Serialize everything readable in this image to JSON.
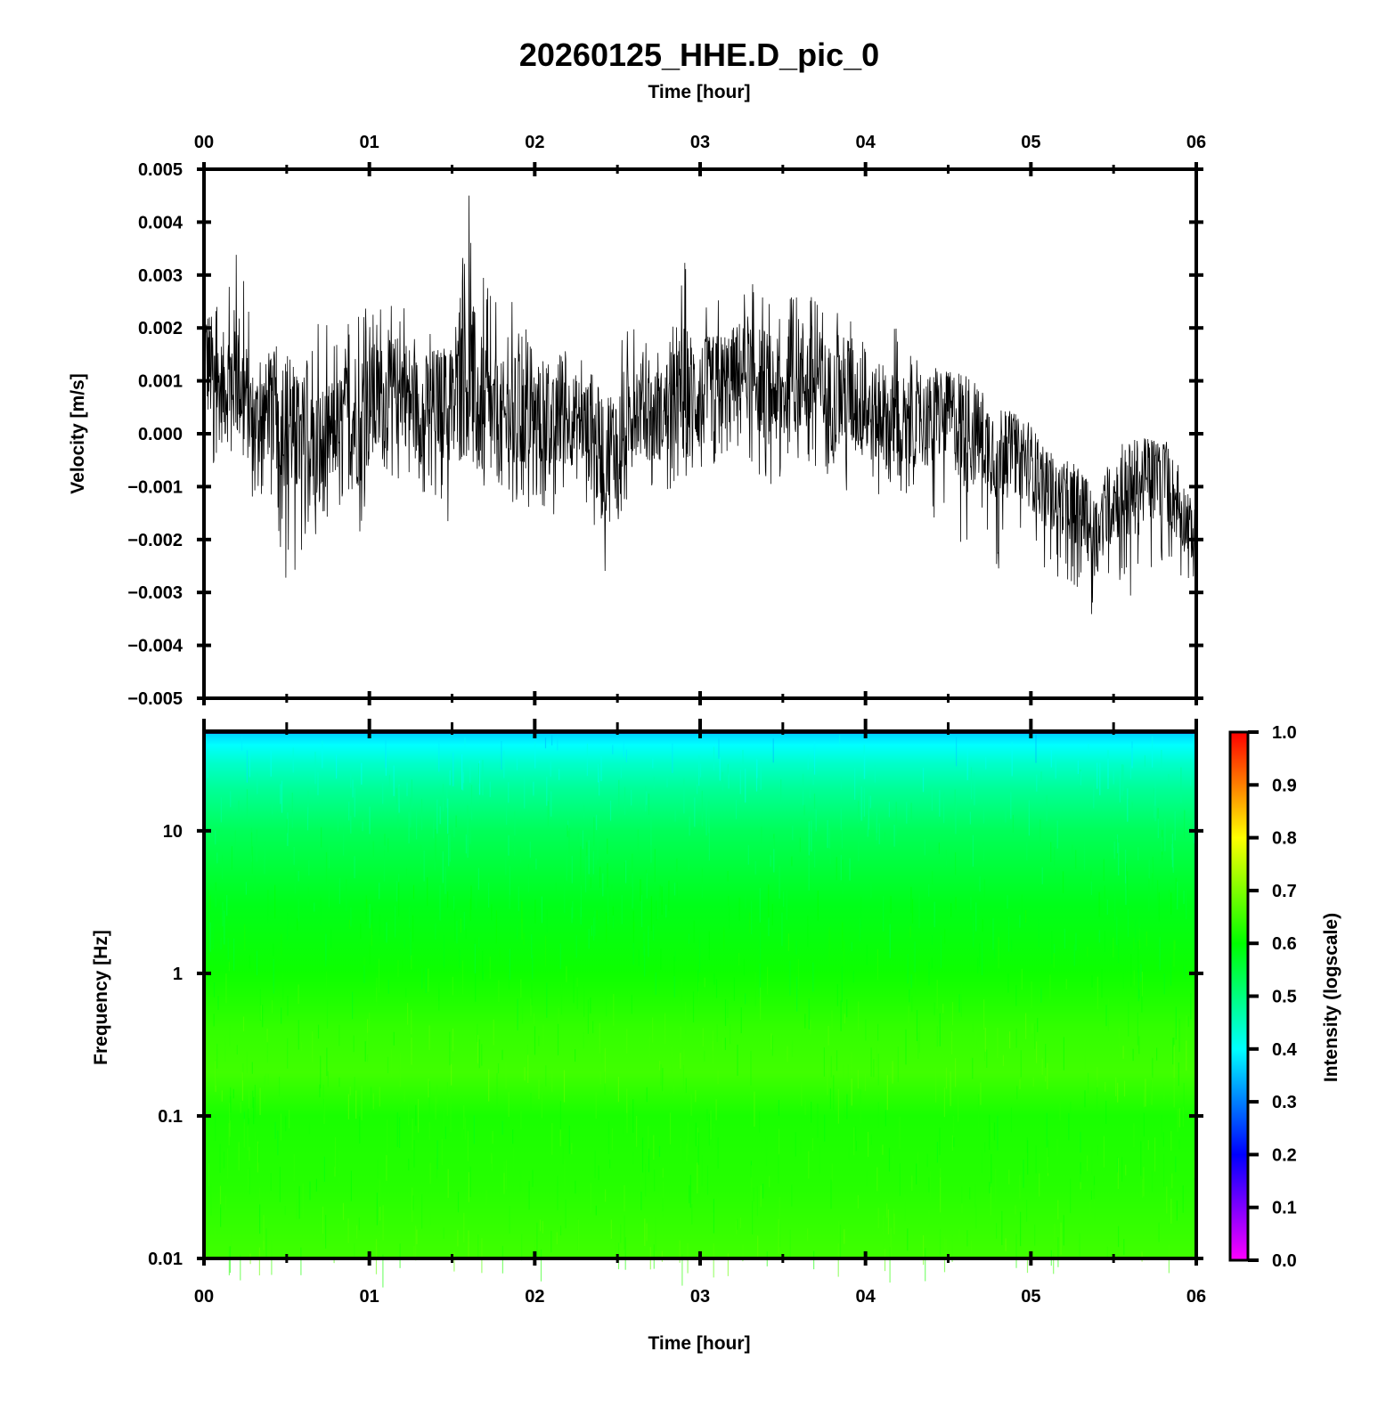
{
  "title": "20260125_HHE.D_pic_0",
  "top_xlabel": "Time [hour]",
  "bottom_xlabel": "Time [hour]",
  "waveform_ylabel": "Velocity [m/s]",
  "spectrogram_ylabel": "Frequency [Hz]",
  "colorbar_label": "Intensity (logscale)",
  "chart_data": [
    {
      "type": "line",
      "name": "waveform",
      "xlabel": "Time [hour]",
      "ylabel": "Velocity [m/s]",
      "xlim": [
        0,
        6
      ],
      "ylim": [
        -0.005,
        0.005
      ],
      "x_ticks": [
        "00",
        "01",
        "02",
        "03",
        "04",
        "05",
        "06"
      ],
      "y_ticks": [
        "0.005",
        "0.004",
        "0.003",
        "0.002",
        "0.001",
        "0.000",
        "−0.001",
        "−0.002",
        "−0.003",
        "−0.004",
        "−0.005"
      ],
      "grid": false,
      "color": "#000000",
      "x": [
        0.0,
        0.1,
        0.2,
        0.3,
        0.4,
        0.5,
        0.6,
        0.7,
        0.8,
        0.9,
        1.0,
        1.1,
        1.2,
        1.3,
        1.4,
        1.5,
        1.6,
        1.7,
        1.8,
        1.9,
        2.0,
        2.1,
        2.2,
        2.3,
        2.4,
        2.5,
        2.6,
        2.7,
        2.8,
        2.9,
        3.0,
        3.1,
        3.2,
        3.3,
        3.4,
        3.5,
        3.6,
        3.7,
        3.8,
        3.9,
        4.0,
        4.1,
        4.2,
        4.3,
        4.4,
        4.5,
        4.6,
        4.7,
        4.8,
        4.9,
        5.0,
        5.1,
        5.2,
        5.3,
        5.4,
        5.5,
        5.6,
        5.7,
        5.8,
        5.9,
        6.0
      ],
      "y": [
        0.0015,
        0.0008,
        0.0012,
        0.0002,
        0.0005,
        0.0003,
        -0.0003,
        -0.0004,
        0.0001,
        0.0003,
        0.0005,
        0.0006,
        0.0009,
        0.0004,
        0.0007,
        0.0004,
        0.0012,
        0.0003,
        0.0002,
        0.0003,
        0.0004,
        0.0001,
        0.0003,
        0.0002,
        -0.0004,
        -0.0001,
        0.0006,
        0.0003,
        0.0004,
        0.0008,
        0.0007,
        0.0009,
        0.0011,
        0.0013,
        0.0009,
        0.0007,
        0.0011,
        0.001,
        0.0006,
        0.0008,
        0.0004,
        0.0003,
        0.0001,
        0.0002,
        0.0002,
        0.0004,
        0.0001,
        -0.0001,
        -0.0003,
        -0.0004,
        -0.0006,
        -0.0011,
        -0.0012,
        -0.0014,
        -0.002,
        -0.0012,
        -0.0011,
        -0.0009,
        -0.0008,
        -0.0014,
        -0.002
      ],
      "envelope_max": [
        0.0031,
        0.0024,
        0.004,
        0.0016,
        0.0018,
        0.0017,
        0.0012,
        0.0024,
        0.0017,
        0.0023,
        0.0026,
        0.0025,
        0.0026,
        0.002,
        0.0019,
        0.0016,
        0.0047,
        0.003,
        0.0025,
        0.0025,
        0.0015,
        0.0015,
        0.0017,
        0.0014,
        0.0012,
        0.0018,
        0.0022,
        0.0018,
        0.0015,
        0.0033,
        0.0026,
        0.0026,
        0.0026,
        0.0029,
        0.0025,
        0.0023,
        0.0029,
        0.0027,
        0.0023,
        0.0024,
        0.0018,
        0.0015,
        0.0024,
        0.0014,
        0.0013,
        0.0012,
        0.0011,
        0.0009,
        0.0008,
        0.0004,
        0.0002,
        -0.0003,
        -0.0005,
        -0.0006,
        -0.0012,
        -0.0001,
        0.0,
        -0.0001,
        0.0,
        -0.0006,
        -0.0014
      ],
      "envelope_min": [
        -0.0006,
        -0.0008,
        -0.0003,
        -0.0015,
        -0.0012,
        -0.0029,
        -0.0023,
        -0.0019,
        -0.0012,
        -0.0023,
        -0.0014,
        -0.0011,
        -0.0008,
        -0.0013,
        -0.0012,
        -0.0021,
        -0.0005,
        -0.0011,
        -0.0012,
        -0.0016,
        -0.0013,
        -0.0016,
        -0.0012,
        -0.0014,
        -0.0029,
        -0.0017,
        -0.0009,
        -0.0013,
        -0.0011,
        -0.0008,
        -0.0009,
        -0.0006,
        -0.0004,
        -0.0005,
        -0.001,
        -0.0009,
        -0.0008,
        -0.0007,
        -0.001,
        -0.0014,
        -0.0012,
        -0.0013,
        -0.0011,
        -0.0012,
        -0.0017,
        -0.0013,
        -0.003,
        -0.0017,
        -0.0026,
        -0.0019,
        -0.0024,
        -0.0026,
        -0.0028,
        -0.003,
        -0.0037,
        -0.0026,
        -0.0032,
        -0.0029,
        -0.0024,
        -0.003,
        -0.0029
      ]
    },
    {
      "type": "heatmap",
      "name": "spectrogram",
      "xlabel": "Time [hour]",
      "ylabel": "Frequency [Hz]",
      "xlim": [
        0,
        6
      ],
      "ylim": [
        0.01,
        50
      ],
      "y_scale": "log",
      "x_ticks": [
        "00",
        "01",
        "02",
        "03",
        "04",
        "05",
        "06"
      ],
      "y_ticks": [
        "10",
        "1",
        "0.1",
        "0.01"
      ],
      "y_tick_values": [
        10,
        1,
        0.1,
        0.01
      ],
      "colorbar": {
        "label": "Intensity (logscale)",
        "range": [
          0,
          1
        ],
        "ticks": [
          "1.0",
          "0.9",
          "0.8",
          "0.7",
          "0.6",
          "0.5",
          "0.4",
          "0.3",
          "0.2",
          "0.1",
          "0.0"
        ],
        "colors": [
          "#ff00ff",
          "#7f00ff",
          "#0000ff",
          "#007fff",
          "#00ffff",
          "#00ff7f",
          "#00ff00",
          "#7fff00",
          "#ffff00",
          "#ff7f00",
          "#ff0000"
        ]
      },
      "frequency_profile": {
        "frequency_hz": [
          50,
          40,
          30,
          20,
          10,
          3,
          1,
          0.4,
          0.2,
          0.1,
          0.03,
          0.01
        ],
        "intensity": [
          0.36,
          0.4,
          0.44,
          0.48,
          0.53,
          0.58,
          0.61,
          0.64,
          0.65,
          0.62,
          0.63,
          0.65
        ]
      }
    }
  ]
}
